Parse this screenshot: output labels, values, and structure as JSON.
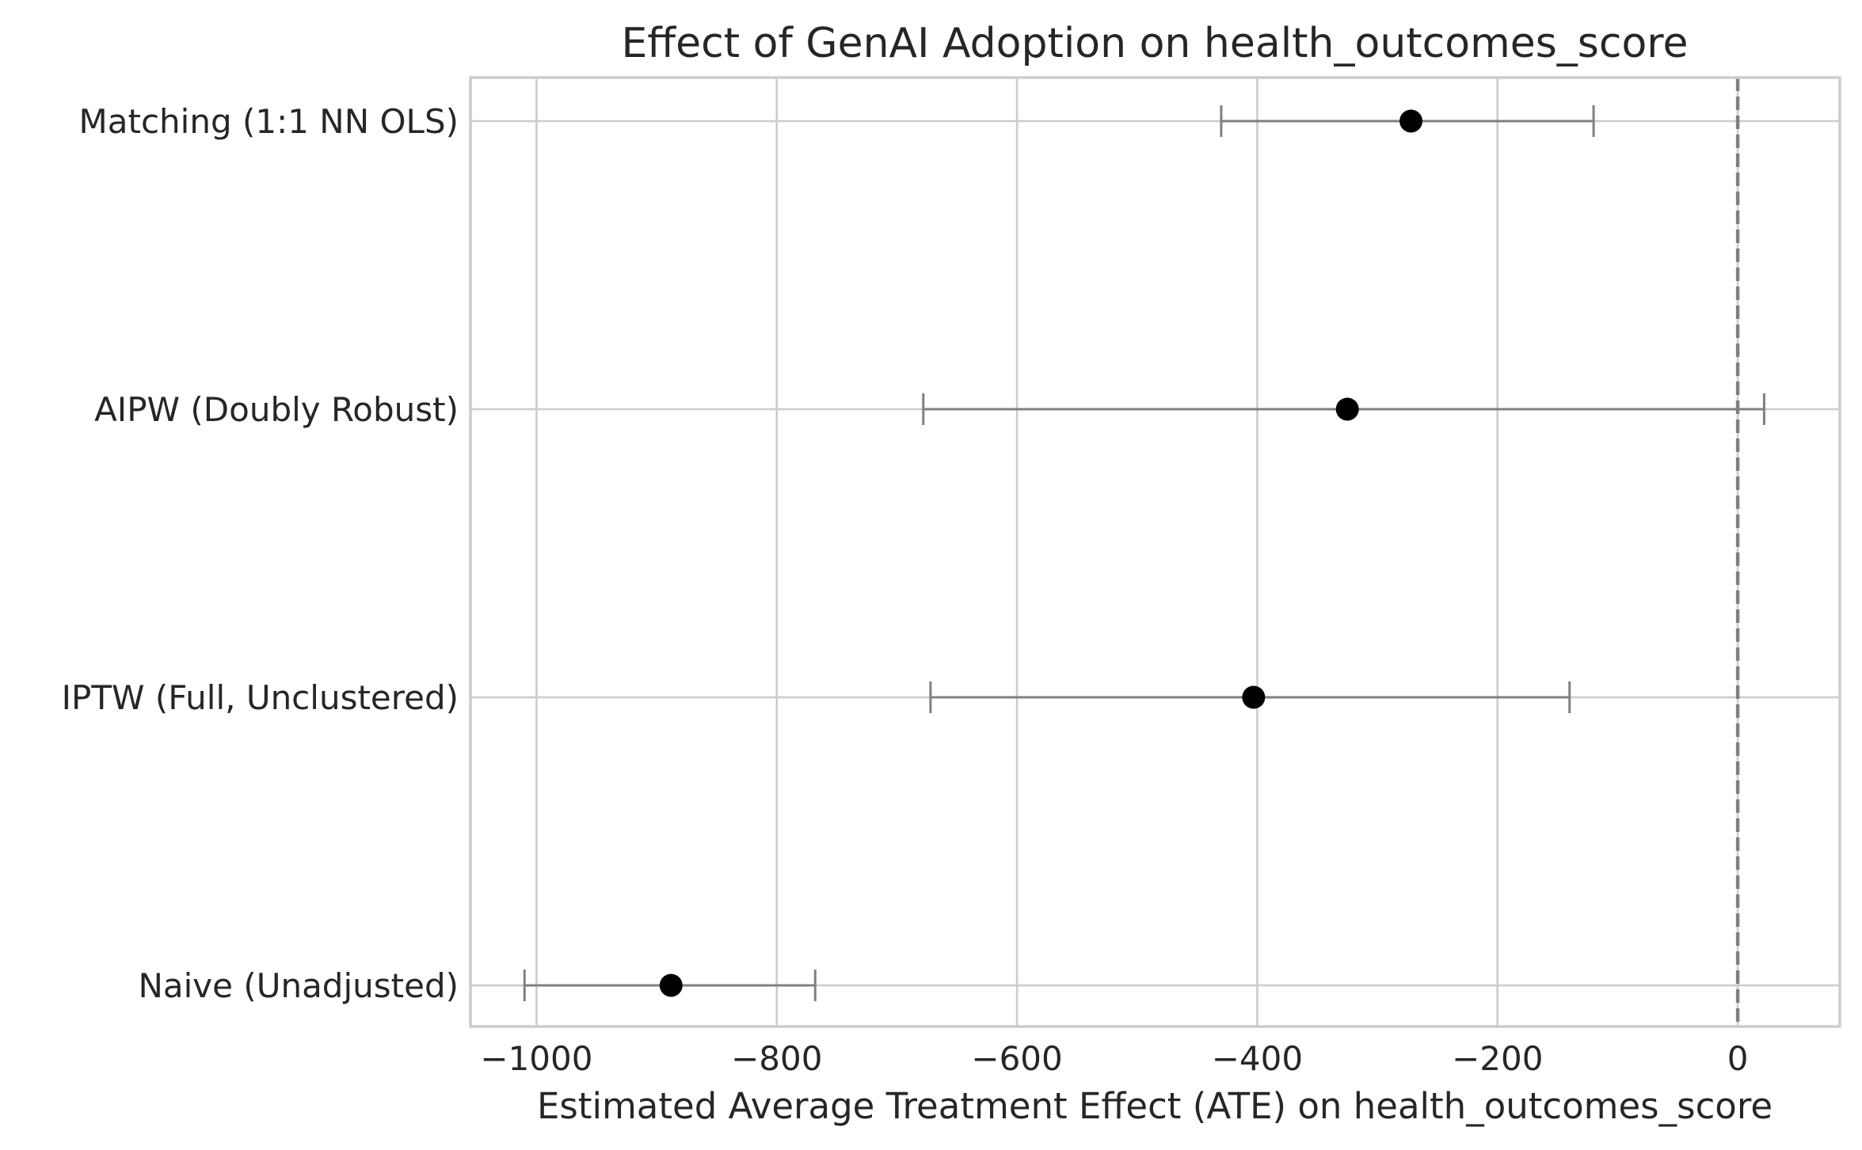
{
  "chart_data": {
    "type": "scatter",
    "subtype": "forest-plot with error bars",
    "title": "Effect of GenAI Adoption on health_outcomes_score",
    "xlabel": "Estimated Average Treatment Effect (ATE) on health_outcomes_score",
    "ylabel": "",
    "xlim": [
      -1055,
      85
    ],
    "x_ticks": [
      -1000,
      -800,
      -600,
      -400,
      -200,
      0
    ],
    "x_tick_labels": [
      "−1000",
      "−800",
      "−600",
      "−400",
      "−200",
      "0"
    ],
    "categories": [
      "Matching (1:1 NN OLS)",
      "AIPW (Doubly Robust)",
      "IPTW (Full, Unclustered)",
      "Naive (Unadjusted)"
    ],
    "series": [
      {
        "estimates": [
          -272,
          -325,
          -403,
          -888
        ],
        "ci_lower": [
          -430,
          -678,
          -672,
          -1010
        ],
        "ci_upper": [
          -120,
          22,
          -140,
          -768
        ]
      }
    ],
    "reference_line": {
      "x": 0,
      "style": "dashed",
      "color": "#808080"
    },
    "grid": true,
    "legend": "none",
    "colors": {
      "point": "#000000",
      "errorbar": "#808080",
      "grid": "#cccccc",
      "text": "#262626"
    }
  }
}
